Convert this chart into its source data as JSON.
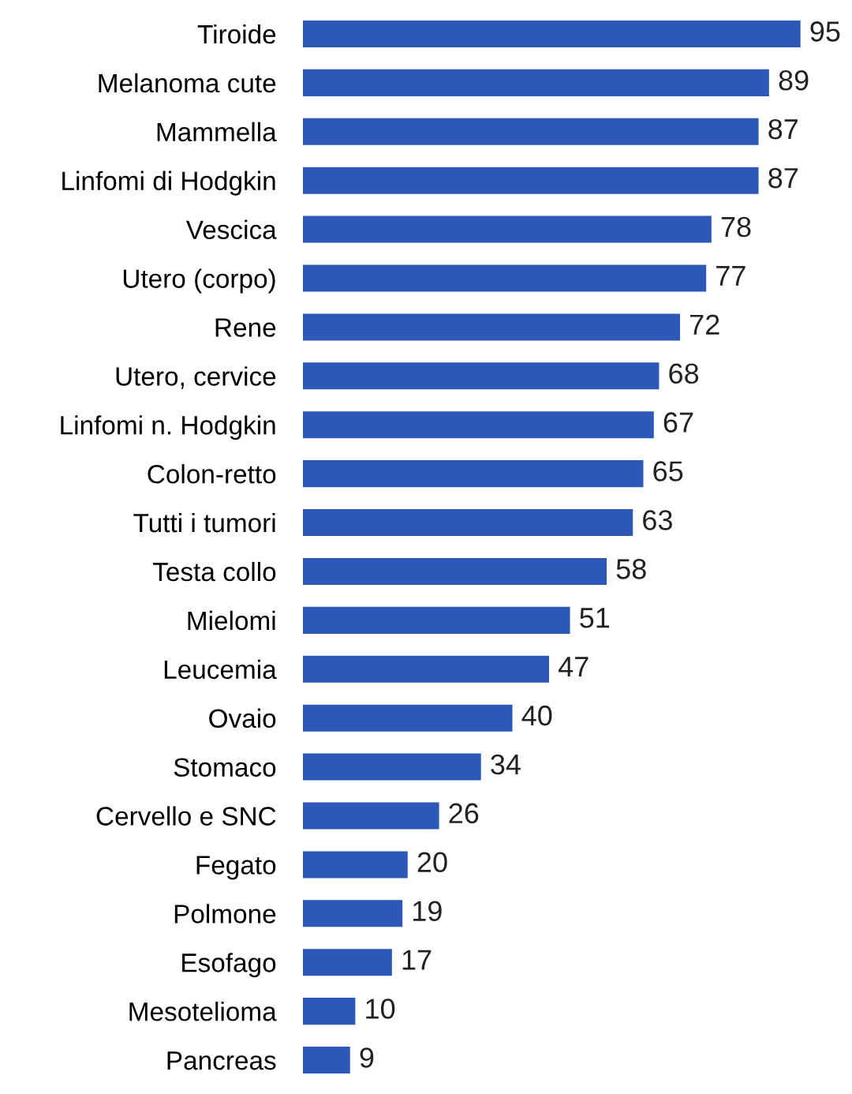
{
  "chart_data": {
    "type": "bar",
    "orientation": "horizontal",
    "data_labels": true,
    "color": "#2e58b8",
    "categories": [
      "Tiroide",
      "Melanoma cute",
      "Mammella",
      "Linfomi di Hodgkin",
      "Vescica",
      "Utero (corpo)",
      "Rene",
      "Utero, cervice",
      "Linfomi n. Hodgkin",
      "Colon-retto",
      "Tutti i tumori",
      "Testa collo",
      "Mielomi",
      "Leucemia",
      "Ovaio",
      "Stomaco",
      "Cervello e SNC",
      "Fegato",
      "Polmone",
      "Esofago",
      "Mesotelioma",
      "Pancreas"
    ],
    "values": [
      95,
      89,
      87,
      87,
      78,
      77,
      72,
      68,
      67,
      65,
      63,
      58,
      51,
      47,
      40,
      34,
      26,
      20,
      19,
      17,
      10,
      9
    ]
  }
}
